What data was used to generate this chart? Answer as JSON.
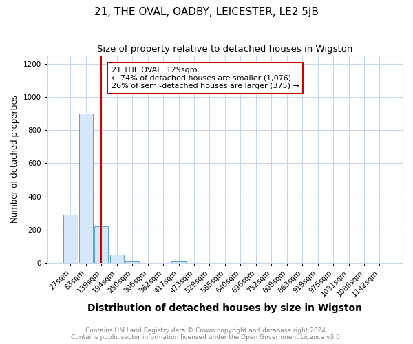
{
  "title": "21, THE OVAL, OADBY, LEICESTER, LE2 5JB",
  "subtitle": "Size of property relative to detached houses in Wigston",
  "xlabel": "Distribution of detached houses by size in Wigston",
  "ylabel": "Number of detached properties",
  "bar_labels": [
    "27sqm",
    "83sqm",
    "139sqm",
    "194sqm",
    "250sqm",
    "306sqm",
    "362sqm",
    "417sqm",
    "473sqm",
    "529sqm",
    "585sqm",
    "640sqm",
    "696sqm",
    "752sqm",
    "808sqm",
    "863sqm",
    "919sqm",
    "975sqm",
    "1031sqm",
    "1086sqm",
    "1142sqm"
  ],
  "bar_heights": [
    290,
    900,
    220,
    52,
    10,
    0,
    0,
    10,
    0,
    0,
    0,
    0,
    0,
    0,
    0,
    0,
    0,
    0,
    0,
    0,
    0
  ],
  "bar_color": "#d6e8f7",
  "bar_edgecolor": "#5a9fd4",
  "vline_x": 2.0,
  "vline_color": "#cc0000",
  "ylim": [
    0,
    1250
  ],
  "yticks": [
    0,
    200,
    400,
    600,
    800,
    1000,
    1200
  ],
  "annotation_text": "21 THE OVAL: 129sqm\n← 74% of detached houses are smaller (1,076)\n26% of semi-detached houses are larger (375) →",
  "annotation_box_color": "#cc0000",
  "footer1": "Contains HM Land Registry data © Crown copyright and database right 2024.",
  "footer2": "Contains public sector information licensed under the Open Government Licence v3.0.",
  "bg_color": "#ffffff",
  "grid_color": "#c8d8ec",
  "title_fontsize": 11,
  "subtitle_fontsize": 9.5,
  "xlabel_fontsize": 10,
  "ylabel_fontsize": 8.5,
  "tick_fontsize": 7.5,
  "annot_fontsize": 8,
  "footer_fontsize": 6.5
}
